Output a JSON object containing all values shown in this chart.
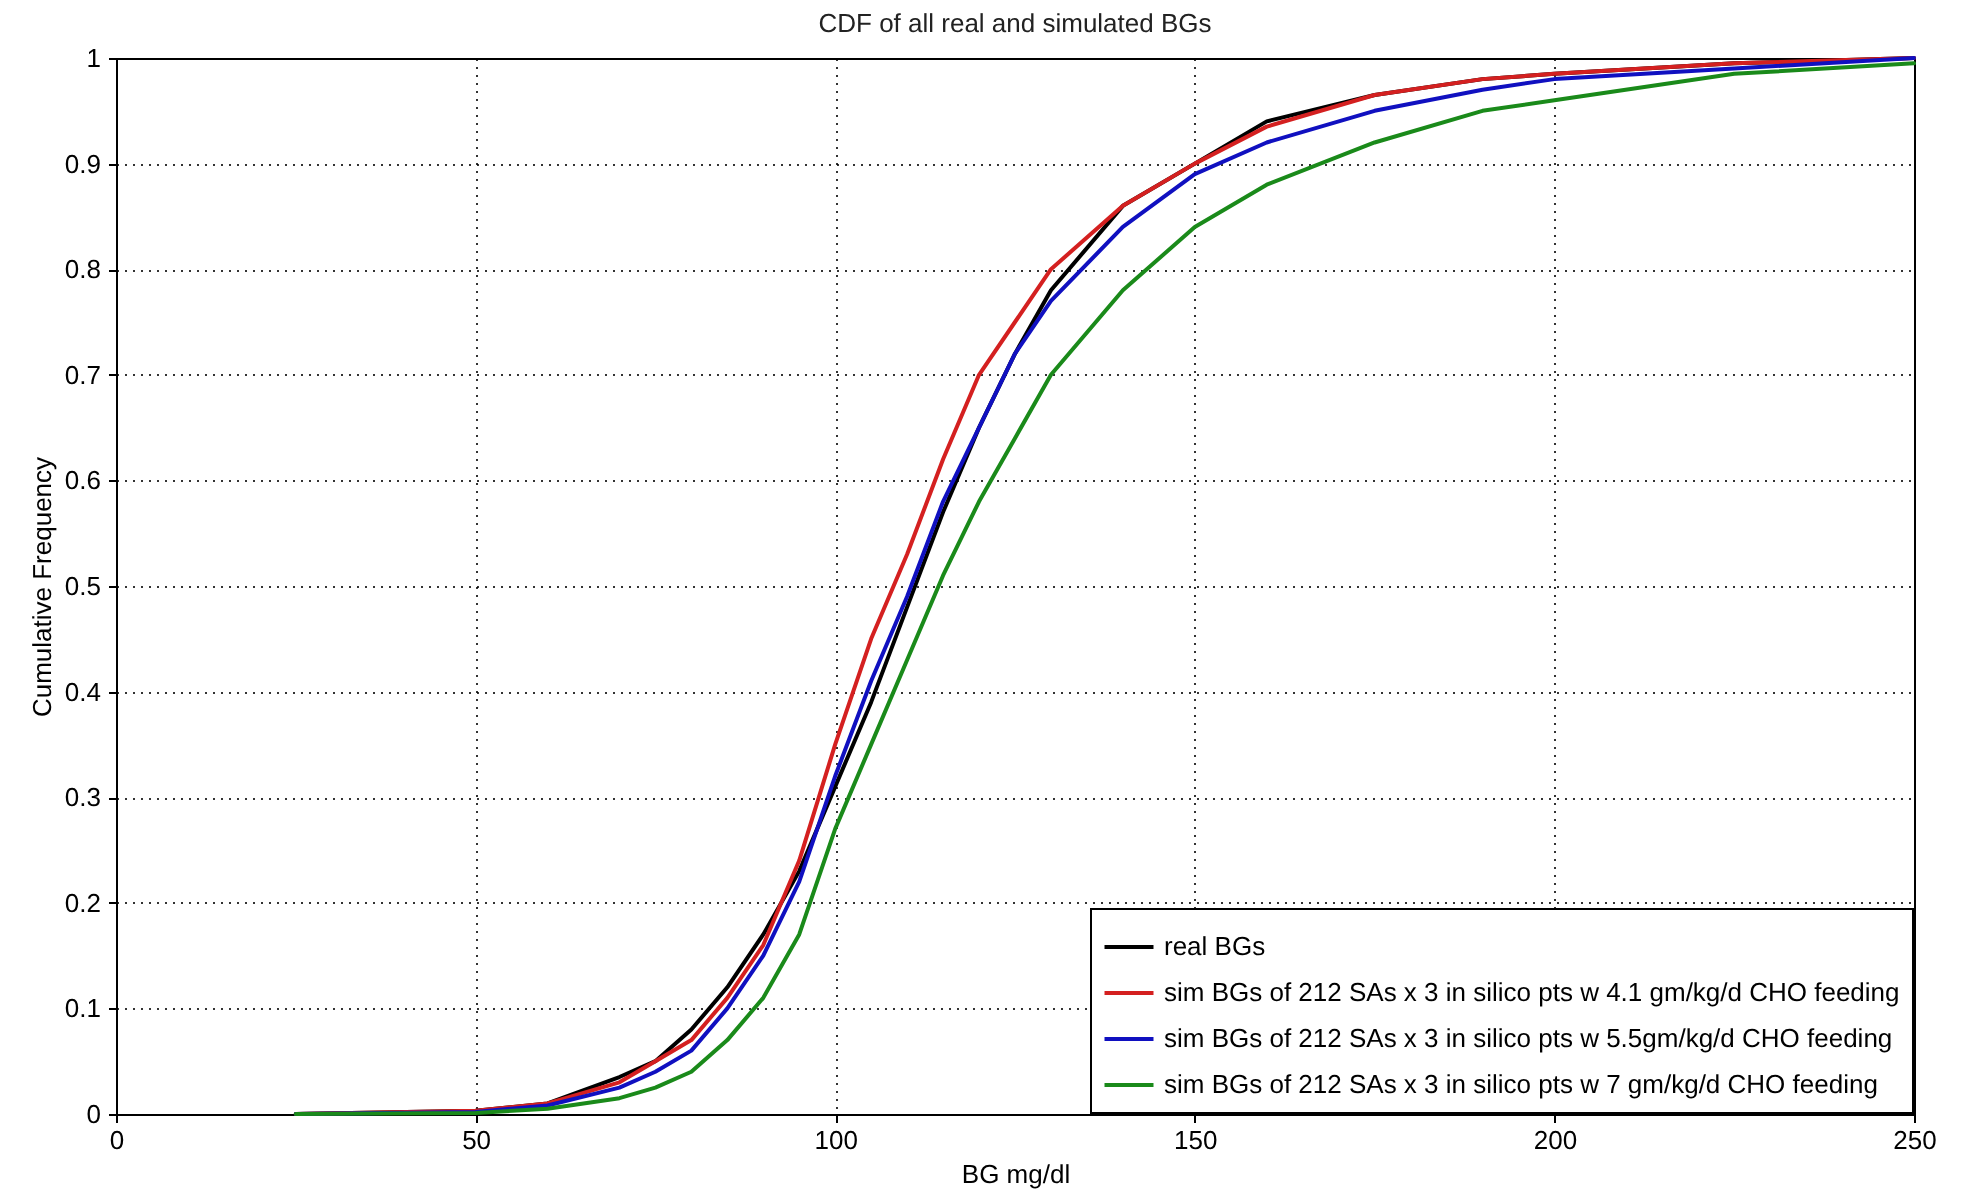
{
  "chart_data": {
    "type": "line",
    "title": "CDF of all real and simulated BGs",
    "xlabel": "BG mg/dl",
    "ylabel": "Cumulative Frequency",
    "x": [
      25,
      50,
      60,
      70,
      75,
      80,
      85,
      90,
      95,
      100,
      105,
      110,
      115,
      120,
      125,
      130,
      140,
      150,
      160,
      175,
      190,
      200,
      225,
      250
    ],
    "series": [
      {
        "name": "real BGs",
        "color": "#000000",
        "values": [
          0,
          0.003,
          0.01,
          0.035,
          0.05,
          0.08,
          0.12,
          0.17,
          0.23,
          0.31,
          0.39,
          0.48,
          0.57,
          0.65,
          0.72,
          0.78,
          0.86,
          0.9,
          0.94,
          0.965,
          0.98,
          0.985,
          0.995,
          1
        ]
      },
      {
        "name": "sim BGs of 212 SAs x 3 in silico pts w 4.1 gm/kg/d CHO feeding",
        "color": "#d42020",
        "values": [
          0,
          0.003,
          0.01,
          0.03,
          0.05,
          0.07,
          0.11,
          0.16,
          0.24,
          0.35,
          0.45,
          0.53,
          0.62,
          0.7,
          0.75,
          0.8,
          0.86,
          0.9,
          0.935,
          0.965,
          0.98,
          0.985,
          0.995,
          1
        ]
      },
      {
        "name": "sim BGs of 212 SAs x 3 in silico pts w 5.5gm/kg/d CHO feeding",
        "color": "#1010c0",
        "values": [
          0,
          0.002,
          0.008,
          0.025,
          0.04,
          0.06,
          0.1,
          0.15,
          0.22,
          0.32,
          0.41,
          0.49,
          0.58,
          0.65,
          0.72,
          0.77,
          0.84,
          0.89,
          0.92,
          0.95,
          0.97,
          0.98,
          0.99,
          1
        ]
      },
      {
        "name": "sim BGs of 212 SAs x 3 in silico pts w 7 gm/kg/d CHO feeding",
        "color": "#1a8a1a",
        "values": [
          0,
          0.001,
          0.005,
          0.015,
          0.025,
          0.04,
          0.07,
          0.11,
          0.17,
          0.27,
          0.35,
          0.43,
          0.51,
          0.58,
          0.64,
          0.7,
          0.78,
          0.84,
          0.88,
          0.92,
          0.95,
          0.96,
          0.985,
          0.995
        ]
      }
    ],
    "xlim": [
      0,
      250
    ],
    "xticks": [
      0,
      50,
      100,
      150,
      200,
      250
    ],
    "ylim": [
      0,
      1
    ],
    "yticks": [
      0,
      0.1,
      0.2,
      0.3,
      0.4,
      0.5,
      0.6,
      0.7,
      0.8,
      0.9,
      1
    ],
    "grid": true,
    "legend": "bottom right",
    "marker": "none",
    "line_style": "solid"
  }
}
